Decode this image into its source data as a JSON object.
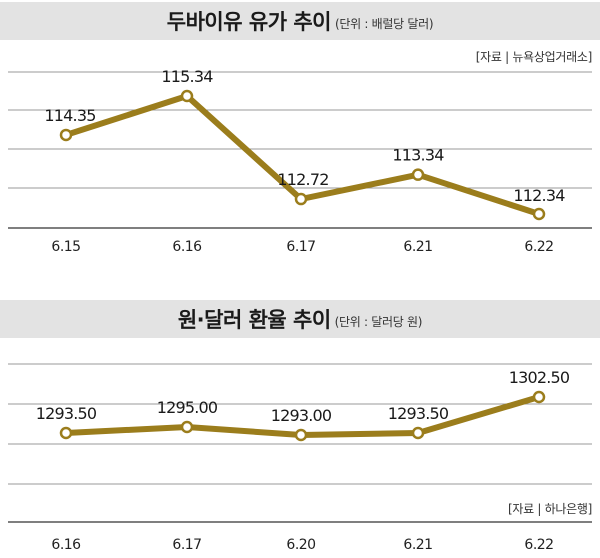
{
  "chart_data": [
    {
      "type": "line",
      "title": "두바이유 유가 추이",
      "unit": "(단위 : 배럴당 달러)",
      "source": "[자료 | 뉴욕상업거래소]",
      "categories": [
        "6.15",
        "6.16",
        "6.17",
        "6.21",
        "6.22"
      ],
      "values": [
        114.35,
        115.34,
        112.72,
        113.34,
        112.34
      ],
      "labels": [
        "114.35",
        "115.34",
        "112.72",
        "113.34",
        "112.34"
      ],
      "color": "#9b7d1c",
      "grid": true
    },
    {
      "type": "line",
      "title": "원·달러 환율 추이",
      "unit": "(단위 : 달러당 원)",
      "source": "[자료 | 하나은행]",
      "categories": [
        "6.16",
        "6.17",
        "6.20",
        "6.21",
        "6.22"
      ],
      "values": [
        1293.5,
        1295.0,
        1293.0,
        1293.5,
        1302.5
      ],
      "labels": [
        "1293.50",
        "1295.00",
        "1293.00",
        "1293.50",
        "1302.50"
      ],
      "color": "#9b7d1c",
      "grid": true
    }
  ]
}
